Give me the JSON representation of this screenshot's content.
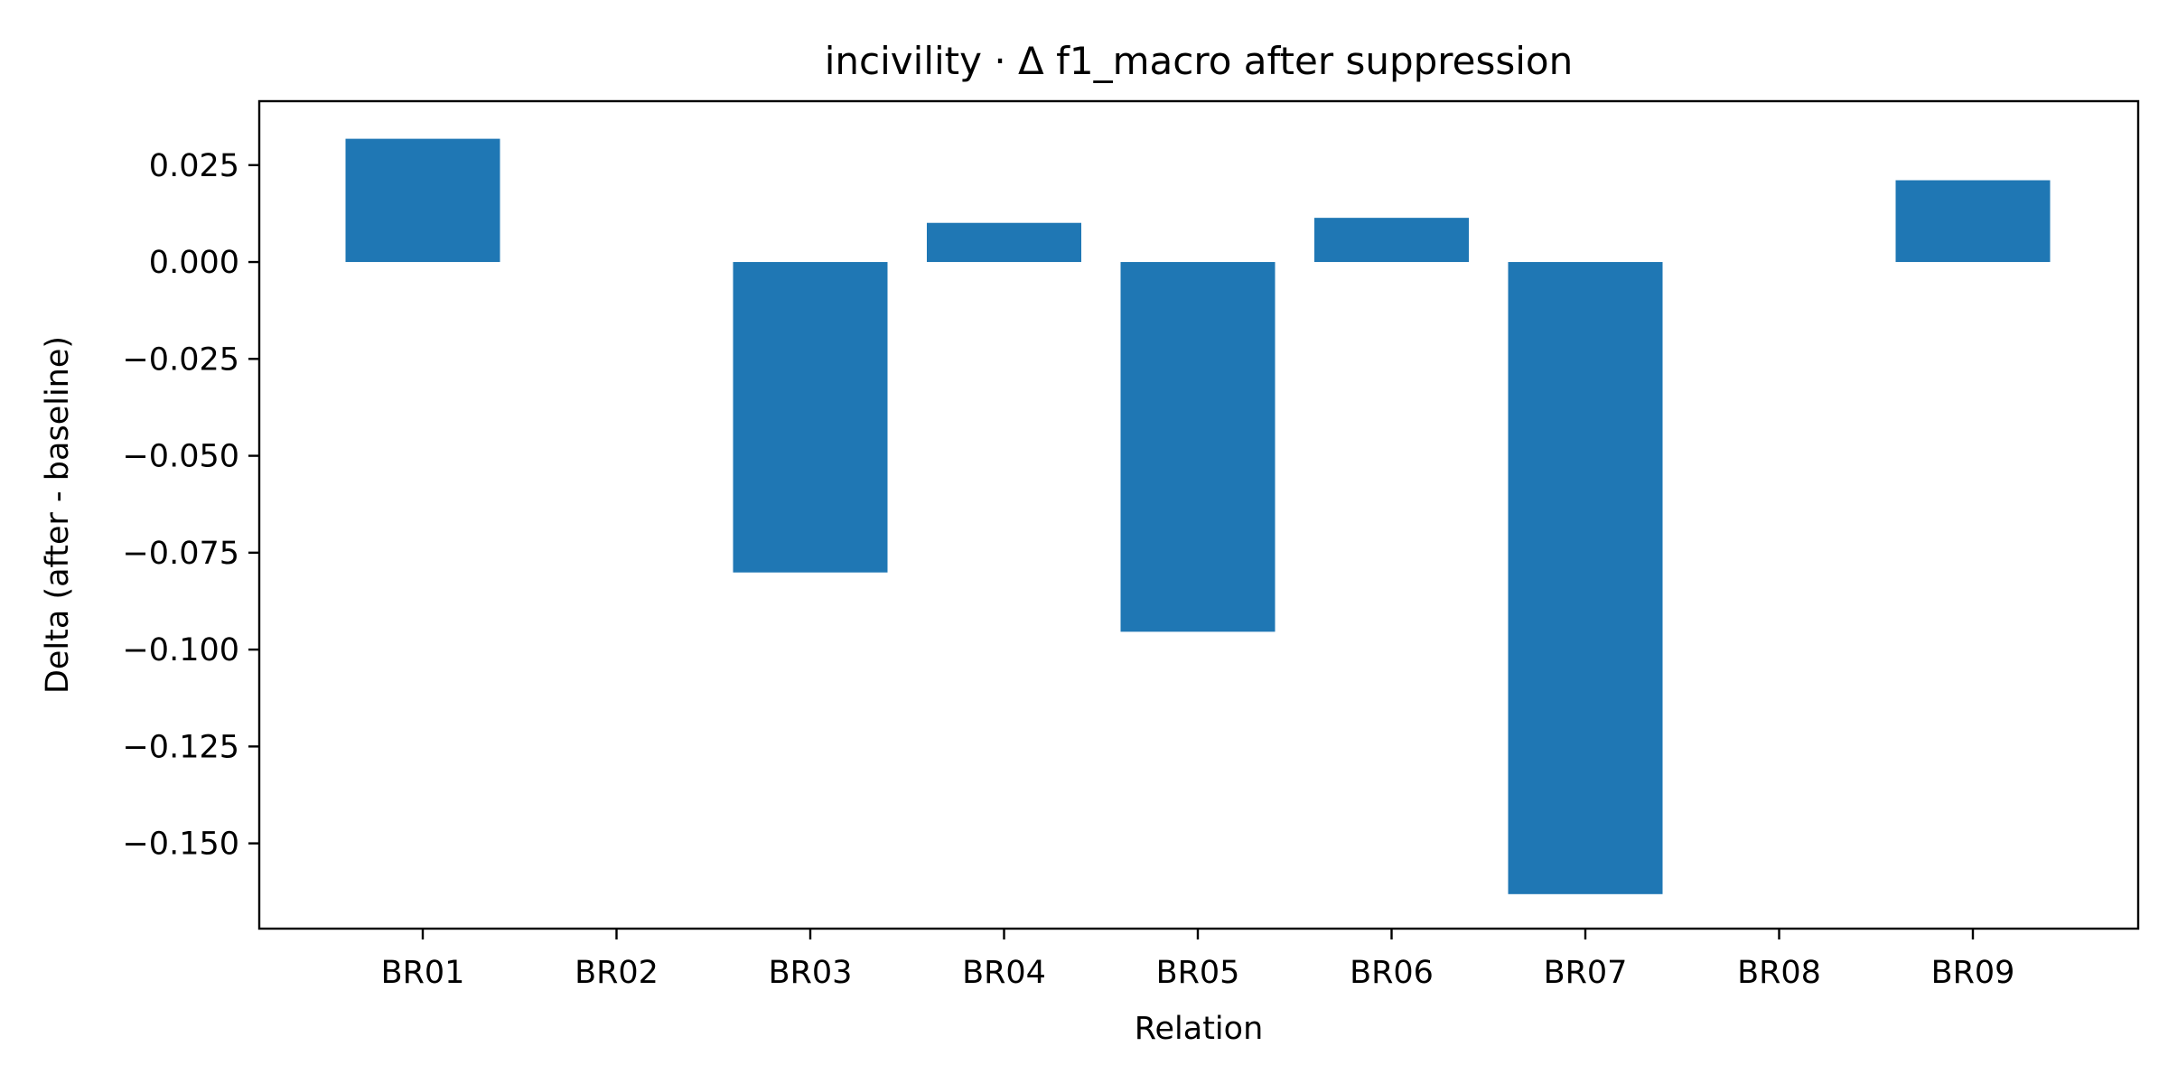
{
  "chart_data": {
    "type": "bar",
    "title": "incivility · Δ f1_macro after suppression",
    "xlabel": "Relation",
    "ylabel": "Delta (after - baseline)",
    "categories": [
      "BR01",
      "BR02",
      "BR03",
      "BR04",
      "BR05",
      "BR06",
      "BR07",
      "BR08",
      "BR09"
    ],
    "values": [
      0.0318,
      0.0,
      -0.0801,
      0.0101,
      -0.0954,
      0.0114,
      -0.1631,
      0.0,
      0.0211
    ],
    "ylim": [
      -0.172,
      0.0415
    ],
    "yticks": [
      0.025,
      0.0,
      -0.025,
      -0.05,
      -0.075,
      -0.1,
      -0.125,
      -0.15
    ],
    "ytick_labels": [
      "0.025",
      "0.000",
      "−0.025",
      "−0.050",
      "−0.075",
      "−0.100",
      "−0.125",
      "−0.150"
    ],
    "bar_color": "#1f77b4",
    "grid": false,
    "legend": "none"
  }
}
